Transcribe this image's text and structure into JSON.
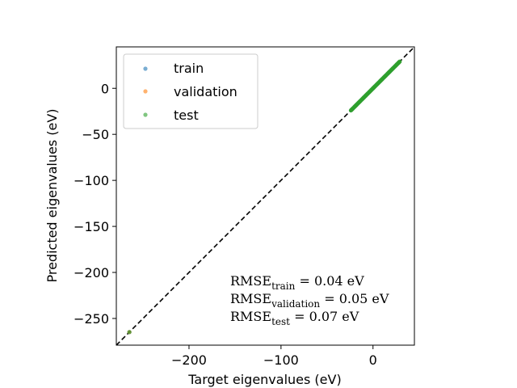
{
  "chart_data": {
    "type": "scatter",
    "title": "",
    "xlabel": "Target eigenvalues (eV)",
    "ylabel": "Predicted eigenvalues (eV)",
    "xlim": [
      -279,
      45
    ],
    "ylim": [
      -279,
      45
    ],
    "xticks": [
      -200,
      -100,
      0
    ],
    "xtick_labels": [
      "−200",
      "−100",
      "0"
    ],
    "yticks": [
      0,
      -50,
      -100,
      -150,
      -200,
      -250
    ],
    "ytick_labels": [
      "0",
      "−50",
      "−100",
      "−150",
      "−200",
      "−250"
    ],
    "grid": false,
    "legend_position": "upper-left",
    "reference_line": {
      "style": "dashed",
      "color": "#000000",
      "x": [
        -279,
        45
      ],
      "y": [
        -279,
        45
      ]
    },
    "series": [
      {
        "name": "train",
        "color": "#1f77b4",
        "x": [
          -264.8,
          -23.5,
          -22,
          -20,
          -18,
          -16,
          -14,
          -12,
          -10,
          -8,
          -6,
          -4,
          -2,
          0,
          2,
          4,
          6,
          8,
          10,
          12,
          14,
          16,
          18,
          20,
          22,
          24,
          26,
          28
        ],
        "y": [
          -264.8,
          -23.5,
          -22,
          -20,
          -18,
          -16,
          -14,
          -12,
          -10,
          -8,
          -6,
          -4,
          -2,
          0,
          2,
          4,
          6,
          8,
          10,
          12,
          14,
          16,
          18,
          20,
          22,
          24,
          26,
          28
        ]
      },
      {
        "name": "validation",
        "color": "#ff7f0e",
        "x": [
          -264.8,
          -23,
          -19,
          -15,
          -11,
          -7,
          -3,
          1,
          5,
          9,
          13,
          17,
          21,
          25,
          28
        ],
        "y": [
          -264.8,
          -23,
          -19,
          -15,
          -11,
          -7,
          -3,
          1,
          5,
          9,
          13,
          17,
          21,
          25,
          28
        ]
      },
      {
        "name": "test",
        "color": "#2ca02c",
        "x": [
          -264.8,
          -24,
          -23,
          -22,
          -21,
          -20,
          -19,
          -18,
          -17,
          -16,
          -15,
          -14,
          -13,
          -12,
          -11,
          -10,
          -9,
          -8,
          -7,
          -6,
          -5,
          -4,
          -3,
          -2,
          -1,
          0,
          1,
          2,
          3,
          4,
          5,
          6,
          7,
          8,
          9,
          10,
          11,
          12,
          13,
          14,
          15,
          16,
          17,
          18,
          19,
          20,
          21,
          22,
          23,
          24,
          25,
          26,
          27,
          28,
          29
        ],
        "y": [
          -264.8,
          -24,
          -23,
          -22,
          -21,
          -20,
          -19,
          -18,
          -17,
          -16,
          -15,
          -14,
          -13,
          -12,
          -11,
          -10,
          -9,
          -8,
          -7,
          -6,
          -5,
          -4,
          -3,
          -2,
          -1,
          0,
          1,
          2,
          3,
          4,
          5,
          6,
          7,
          8,
          9,
          10,
          11,
          12,
          13,
          14,
          15,
          16,
          17,
          18,
          19,
          20,
          21,
          22,
          23,
          24,
          25,
          26,
          27,
          28,
          29
        ]
      }
    ],
    "annotations": {
      "rmse_train": {
        "prefix": "RMSE",
        "subscript": "train",
        "value": " = 0.04 eV"
      },
      "rmse_validation": {
        "prefix": "RMSE",
        "subscript": "validation",
        "value": " = 0.05 eV"
      },
      "rmse_test": {
        "prefix": "RMSE",
        "subscript": "test",
        "value": " = 0.07 eV"
      }
    }
  }
}
